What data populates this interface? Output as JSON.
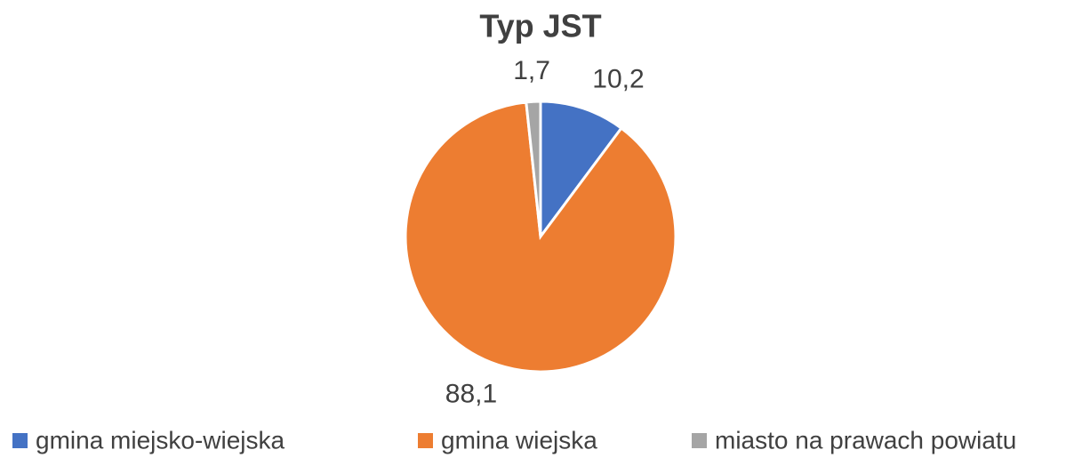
{
  "chart_data": {
    "type": "pie",
    "title": "Typ JST",
    "categories": [
      "gmina miejsko-wiejska",
      "gmina wiejska",
      "miasto na prawach powiatu"
    ],
    "values": [
      10.2,
      88.1,
      1.7
    ],
    "value_labels": [
      "10,2",
      "88,1",
      "1,7"
    ],
    "colors": [
      "#4472c4",
      "#ed7d31",
      "#a5a5a5"
    ],
    "legend": "bottom"
  }
}
